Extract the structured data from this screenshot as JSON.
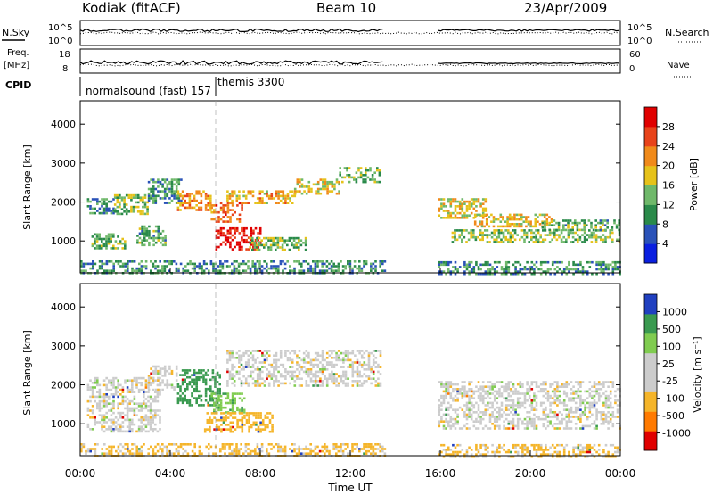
{
  "header": {
    "station": "Kodiak (fitACF)",
    "beam": "Beam 10",
    "date": "23/Apr/2009"
  },
  "noise_panel": {
    "left_label": "N.Sky",
    "right_label": "N.Search",
    "left_ticks": [
      "10^5",
      "10^0"
    ],
    "right_ticks": [
      "10^5",
      "10^0"
    ]
  },
  "freq_panel": {
    "left_label_line1": "Freq.",
    "left_label_line2": "[MHz]",
    "left_ticks": [
      "18",
      "8"
    ],
    "right_label": "Nave",
    "right_ticks": [
      "60",
      "0"
    ]
  },
  "cpid": {
    "label": "CPID",
    "entries": [
      {
        "text": "normalsound (fast) 157",
        "start_hour": 0
      },
      {
        "text": "themis 3300",
        "start_hour": 6.0
      }
    ]
  },
  "x_axis": {
    "label": "Time UT",
    "ticks": [
      "00:00",
      "04:00",
      "08:00",
      "12:00",
      "16:00",
      "20:00",
      "00:00"
    ],
    "tick_hours": [
      0,
      4,
      8,
      12,
      16,
      20,
      24
    ]
  },
  "power_panel": {
    "ylabel": "Slant Range [km]",
    "yticks": [
      "4000",
      "3000",
      "2000",
      "1000"
    ],
    "colorbar_label": "Power [dB]",
    "colorbar_ticks": [
      "28",
      "24",
      "20",
      "16",
      "12",
      "8",
      "4"
    ]
  },
  "velocity_panel": {
    "ylabel": "Slant Range [km]",
    "yticks": [
      "4000",
      "3000",
      "2000",
      "1000"
    ],
    "colorbar_label": "Velocity [m s⁻¹]",
    "colorbar_ticks": [
      "1000",
      "500",
      "100",
      "25",
      "-25",
      "-100",
      "-500",
      "-1000"
    ]
  },
  "colors": {
    "power_scale": [
      "#0a1fe0",
      "#2a52b8",
      "#2a8a4a",
      "#6fb86a",
      "#e6c21a",
      "#f08a1a",
      "#e8431a",
      "#e00000"
    ],
    "velocity_scale": [
      "#e00000",
      "#ff7a00",
      "#f5b52a",
      "#cccccc",
      "#cccccc",
      "#80cc50",
      "#3a9a50",
      "#2040c0"
    ]
  },
  "chart_data": {
    "type": "heatmap",
    "x_units": "hours UT",
    "y_units": "km",
    "xlim": [
      0,
      24
    ],
    "ylim": [
      180,
      4600
    ],
    "data_gap_hours": [
      13.5,
      15.9
    ],
    "power_regions": [
      {
        "t0": 0.0,
        "t1": 13.5,
        "r0": 180,
        "r1": 500,
        "power": 10
      },
      {
        "t0": 15.9,
        "t1": 24.0,
        "r0": 180,
        "r1": 480,
        "power": 10
      },
      {
        "t0": 0.3,
        "t1": 1.5,
        "r0": 1700,
        "r1": 2100,
        "power": 10
      },
      {
        "t0": 0.5,
        "t1": 2.0,
        "r0": 800,
        "r1": 1200,
        "power": 13
      },
      {
        "t0": 1.5,
        "t1": 3.0,
        "r0": 1700,
        "r1": 2200,
        "power": 15
      },
      {
        "t0": 2.5,
        "t1": 3.8,
        "r0": 900,
        "r1": 1400,
        "power": 12
      },
      {
        "t0": 3.0,
        "t1": 4.5,
        "r0": 2000,
        "r1": 2600,
        "power": 11
      },
      {
        "t0": 4.3,
        "t1": 5.8,
        "r0": 1800,
        "r1": 2300,
        "power": 22
      },
      {
        "t0": 5.8,
        "t1": 7.2,
        "r0": 1500,
        "r1": 2000,
        "power": 24
      },
      {
        "t0": 6.0,
        "t1": 8.0,
        "r0": 800,
        "r1": 1350,
        "power": 30
      },
      {
        "t0": 7.5,
        "t1": 10.0,
        "r0": 800,
        "r1": 1100,
        "power": 14
      },
      {
        "t0": 6.5,
        "t1": 9.5,
        "r0": 1950,
        "r1": 2300,
        "power": 20
      },
      {
        "t0": 9.5,
        "t1": 11.5,
        "r0": 2200,
        "r1": 2600,
        "power": 18
      },
      {
        "t0": 11.5,
        "t1": 13.3,
        "r0": 2500,
        "r1": 2900,
        "power": 14
      },
      {
        "t0": 15.9,
        "t1": 18.0,
        "r0": 1600,
        "r1": 2100,
        "power": 18
      },
      {
        "t0": 17.5,
        "t1": 21.0,
        "r0": 1350,
        "r1": 1700,
        "power": 19
      },
      {
        "t0": 16.5,
        "t1": 24.0,
        "r0": 950,
        "r1": 1300,
        "power": 15
      },
      {
        "t0": 20.5,
        "t1": 24.0,
        "r0": 1300,
        "r1": 1550,
        "power": 12
      }
    ],
    "velocity_regions": [
      {
        "t0": 0.0,
        "t1": 13.5,
        "r0": 180,
        "r1": 500,
        "velocity": -40
      },
      {
        "t0": 15.9,
        "t1": 24.0,
        "r0": 180,
        "r1": 480,
        "velocity": -40
      },
      {
        "t0": 0.3,
        "t1": 3.5,
        "r0": 800,
        "r1": 2200,
        "velocity": 0
      },
      {
        "t0": 3.0,
        "t1": 4.3,
        "r0": 1900,
        "r1": 2500,
        "velocity": 0
      },
      {
        "t0": 4.3,
        "t1": 6.2,
        "r0": 1500,
        "r1": 2400,
        "velocity": 150
      },
      {
        "t0": 5.8,
        "t1": 7.3,
        "r0": 1300,
        "r1": 1800,
        "velocity": 80
      },
      {
        "t0": 5.5,
        "t1": 8.5,
        "r0": 800,
        "r1": 1300,
        "velocity": -70
      },
      {
        "t0": 6.5,
        "t1": 13.3,
        "r0": 1950,
        "r1": 2900,
        "velocity": 0
      },
      {
        "t0": 15.9,
        "t1": 24.0,
        "r0": 900,
        "r1": 2100,
        "velocity": 0
      }
    ]
  }
}
